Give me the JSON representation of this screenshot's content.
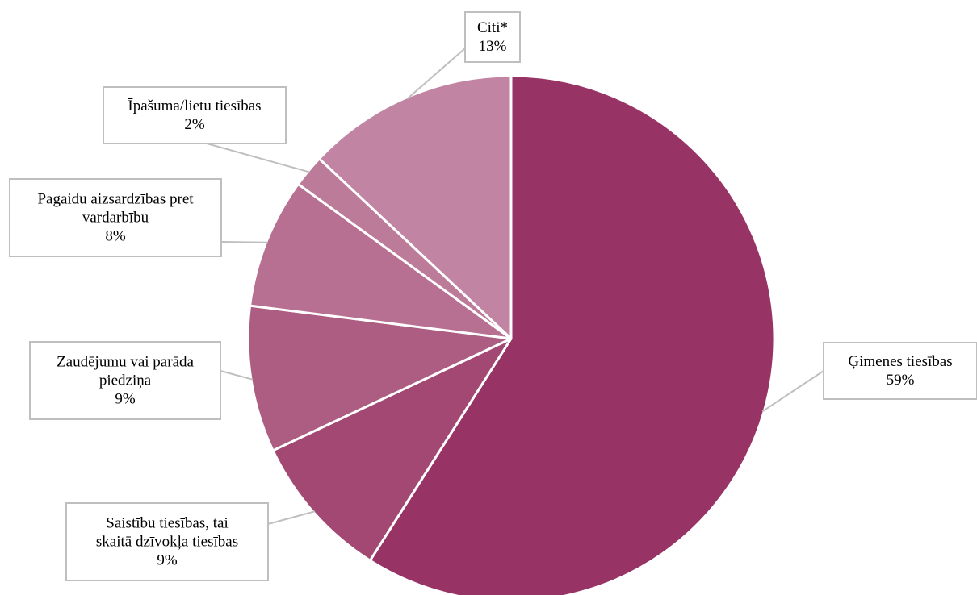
{
  "chart_data": {
    "type": "pie",
    "title": "",
    "slices": [
      {
        "name": "Ģimenes tiesības",
        "value": 59,
        "label": "59%",
        "color": "#983365"
      },
      {
        "name": "Saistību tiesības, tai skaitā dzīvokļa tiesības",
        "value": 9,
        "label": "9%",
        "color": "#a24873"
      },
      {
        "name": "Zaudējumu vai parāda piedziņa",
        "value": 9,
        "label": "9%",
        "color": "#ad5d82"
      },
      {
        "name": "Pagaidu aizsardzības pret vardarbību",
        "value": 8,
        "label": "8%",
        "color": "#b87092"
      },
      {
        "name": "Īpašuma/lietu tiesības",
        "value": 2,
        "label": "2%",
        "color": "#bd7b9a"
      },
      {
        "name": "Citi*",
        "value": 13,
        "label": "13%",
        "color": "#c184a2"
      }
    ],
    "label_lines": [
      [
        "Ģimenes tiesības",
        "59%"
      ],
      [
        "Saistību tiesības, tai",
        "skaitā dzīvokļa tiesības",
        "9%"
      ],
      [
        "Zaudējumu vai parāda",
        "piedziņa",
        "9%"
      ],
      [
        "Pagaidu aizsardzības pret",
        "vardarbību",
        "8%"
      ],
      [
        "Īpašuma/lietu tiesības",
        "2%"
      ],
      [
        "Citi*",
        "13%"
      ]
    ]
  }
}
